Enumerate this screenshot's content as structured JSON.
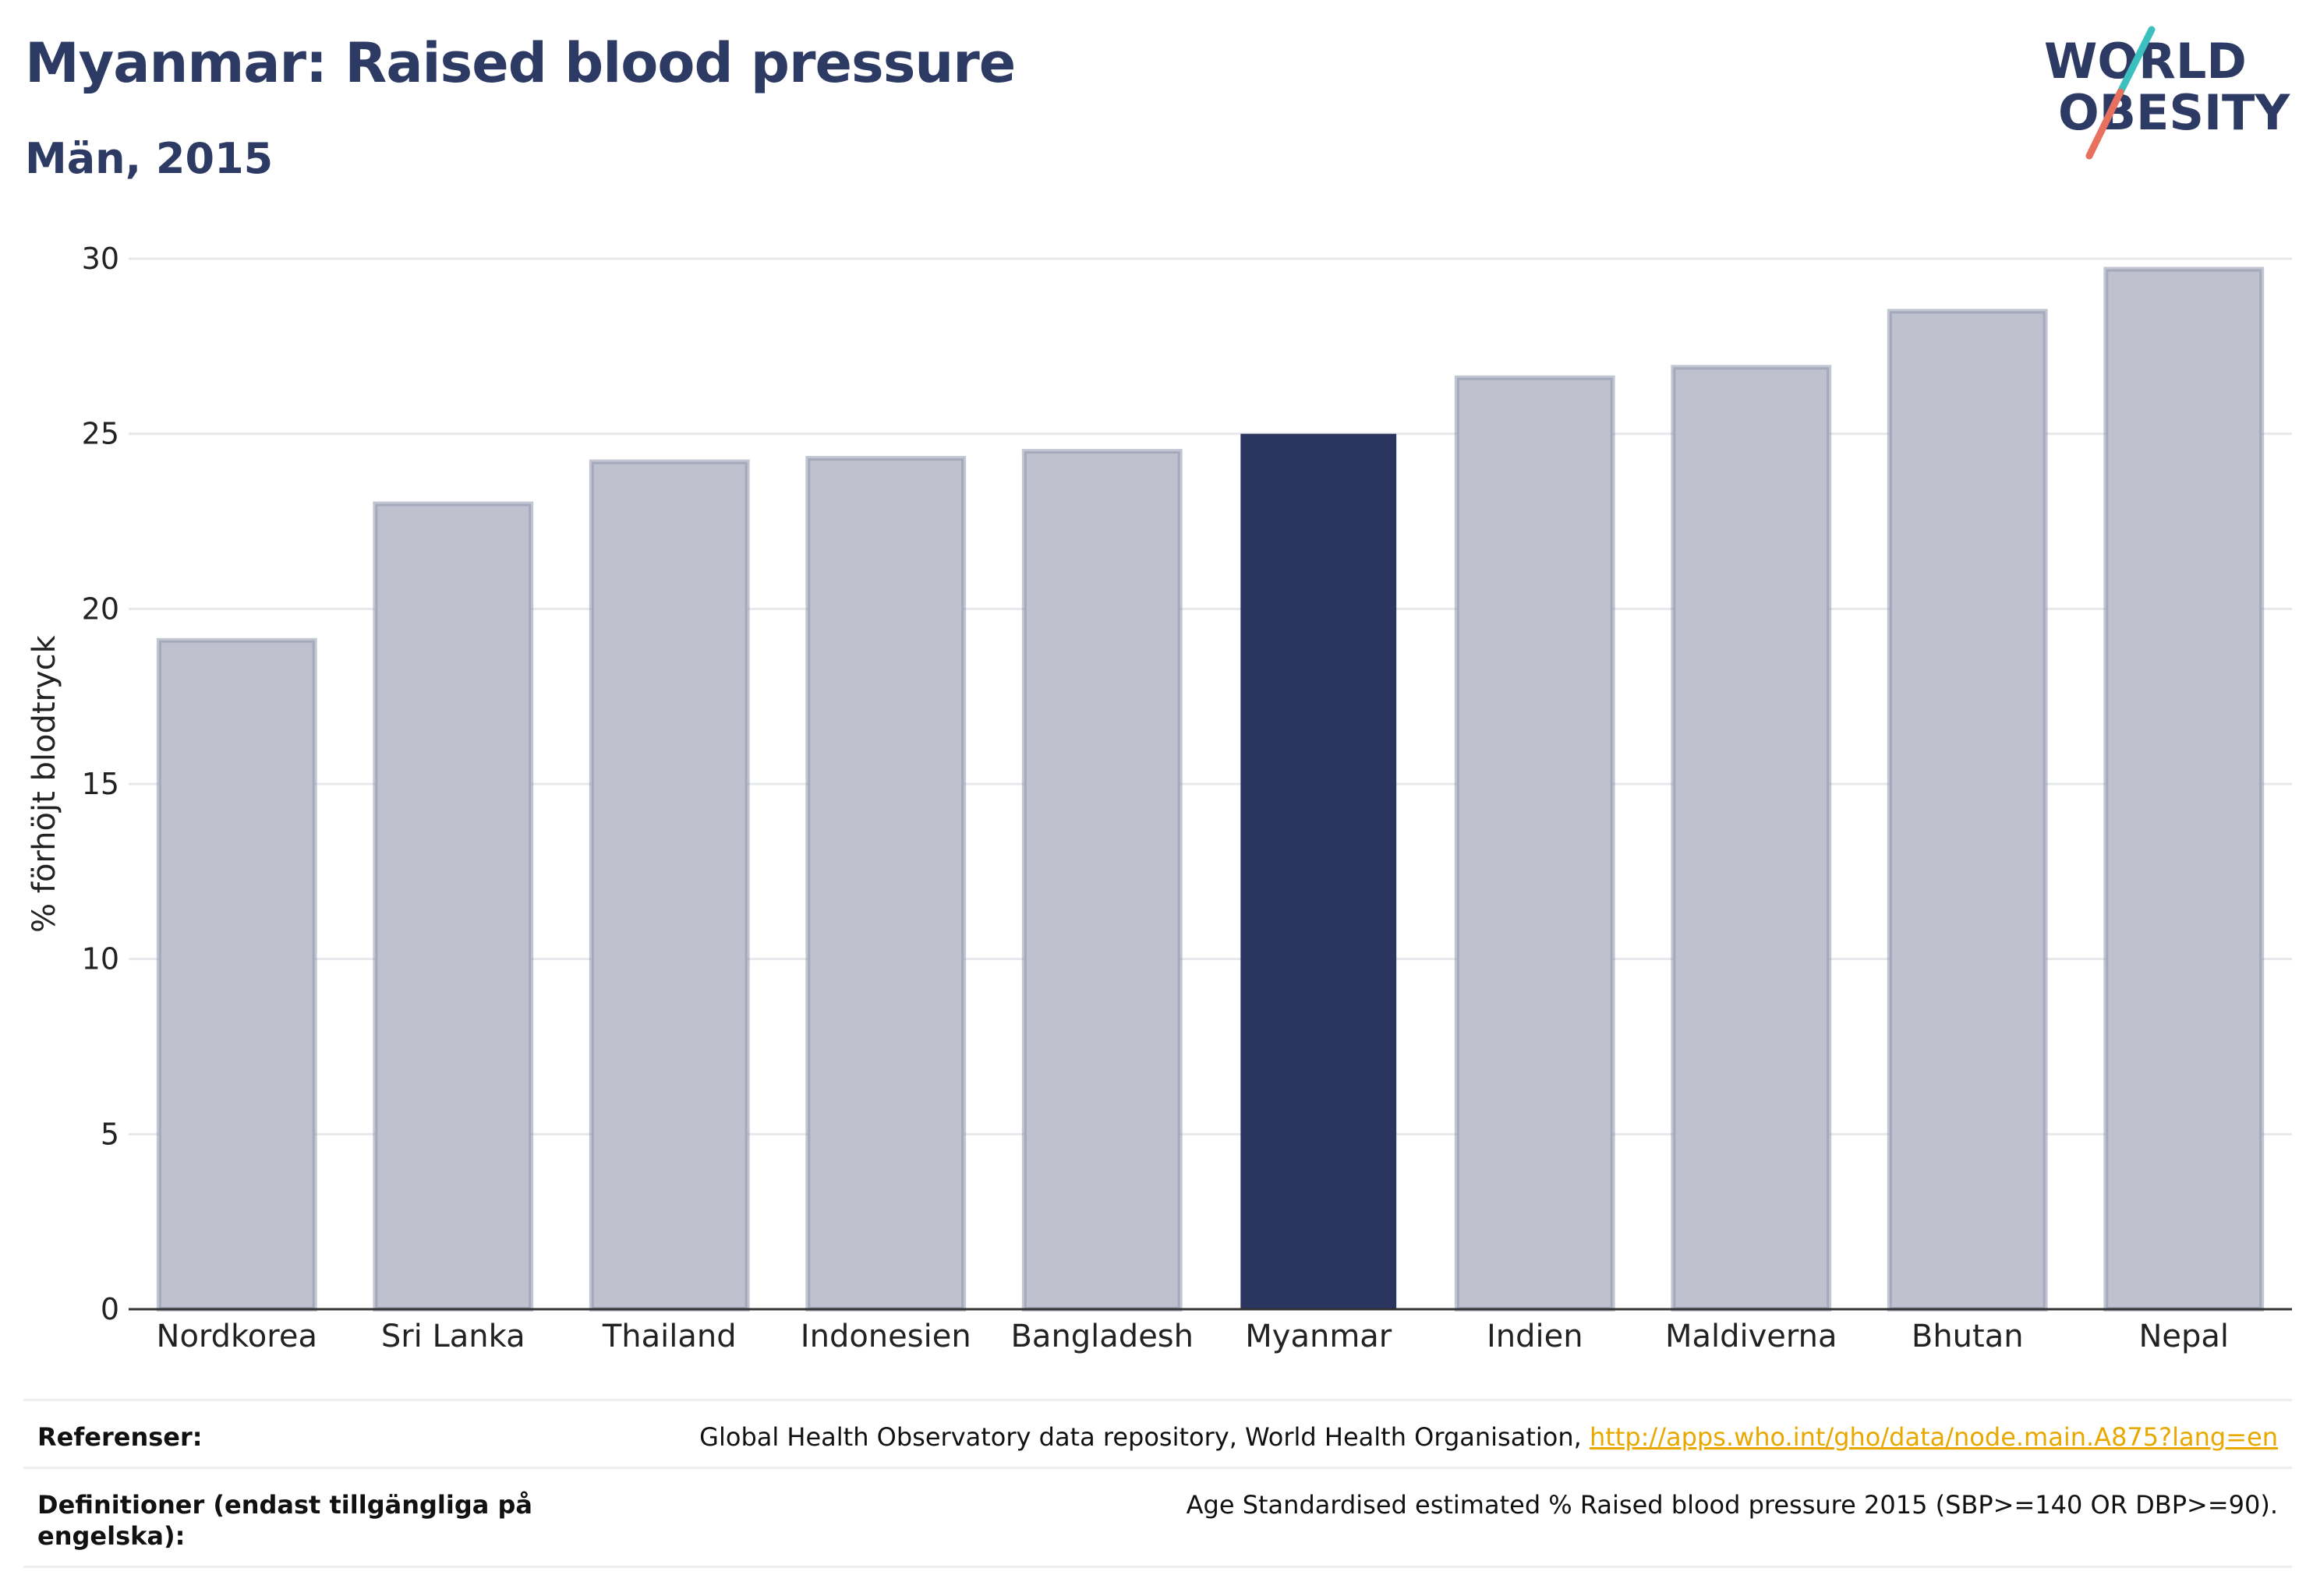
{
  "header": {
    "title": "Myanmar: Raised blood pressure",
    "subtitle": "Män, 2015"
  },
  "logo": {
    "line1": "WORLD",
    "line2": "OBESITY",
    "colors": {
      "text": "#2d3a64",
      "slash_top": "#3bbfbf",
      "slash_bottom": "#e8705f"
    }
  },
  "chart_data": {
    "type": "bar",
    "ylabel": "% förhöjt blodtryck",
    "xlabel": "",
    "ylim": [
      0,
      30
    ],
    "yticks": [
      0,
      5,
      10,
      15,
      20,
      25,
      30
    ],
    "grid": true,
    "categories": [
      "Nordkorea",
      "Sri Lanka",
      "Thailand",
      "Indonesien",
      "Bangladesh",
      "Myanmar",
      "Indien",
      "Maldiverna",
      "Bhutan",
      "Nepal"
    ],
    "values": [
      19.1,
      23.0,
      24.2,
      24.3,
      24.5,
      25.0,
      26.6,
      26.9,
      28.5,
      29.7
    ],
    "highlight": "Myanmar",
    "colors": {
      "bar": "#bfc2ce",
      "bar_border": "#8f95ad",
      "highlight": "#2a3660"
    }
  },
  "footer": {
    "references_label": "Referenser:",
    "references_text": "Global Health Observatory data repository, World Health Organisation, ",
    "references_link": "http://apps.who.int/gho/data/node.main.A875?lang=en",
    "definitions_label": "Definitioner (endast tillgängliga på engelska):",
    "definitions_text": "Age Standardised estimated % Raised blood pressure 2015 (SBP>=140 OR DBP>=90)."
  }
}
